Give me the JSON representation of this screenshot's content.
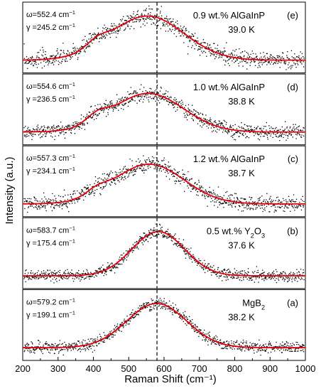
{
  "chart_data": {
    "type": "scatter",
    "xlabel": "Raman Shift (cm⁻¹)",
    "ylabel": "Intensity (a.u.)",
    "xlim": [
      200,
      1000
    ],
    "xticks": [
      "200",
      "300",
      "400",
      "500",
      "600",
      "700",
      "800",
      "900",
      "1000"
    ],
    "reference_line_x": 580,
    "colors": {
      "points": "#000000",
      "fit": "#e8000b",
      "dashed": "#000000"
    },
    "panels": [
      {
        "id": "e",
        "letter": "(e)",
        "sample_text": "0.9 wt.% AlGaInP",
        "temperature": "39.0 K",
        "omega_value": "552.4",
        "gamma_value": "245.2",
        "center": 552.4,
        "width": 245.2,
        "peak_height": 0.8,
        "shoulder": 0.12,
        "noise": 0.075
      },
      {
        "id": "d",
        "letter": "(d)",
        "sample_text": "1.0 wt.% AlGaInP",
        "temperature": "38.8 K",
        "omega_value": "554.6",
        "gamma_value": "236.5",
        "center": 554.6,
        "width": 236.5,
        "peak_height": 0.7,
        "shoulder": 0.14,
        "noise": 0.065
      },
      {
        "id": "c",
        "letter": "(c)",
        "sample_text": "1.2 wt.% AlGaInP",
        "temperature": "38.7 K",
        "omega_value": "557.3",
        "gamma_value": "234.1",
        "center": 557.3,
        "width": 234.1,
        "peak_height": 0.72,
        "shoulder": 0.1,
        "noise": 0.07
      },
      {
        "id": "b",
        "letter": "(b)",
        "sample_base": "0.5 wt.% Y",
        "sample_sub1": "2",
        "sample_mid": "O",
        "sample_sub2": "3",
        "temperature": "37.6 K",
        "omega_value": "583.7",
        "gamma_value": "175.4",
        "center": 583.7,
        "width": 175.4,
        "peak_height": 0.8,
        "shoulder": 0.0,
        "noise": 0.05
      },
      {
        "id": "a",
        "letter": "(a)",
        "sample_base": "MgB",
        "sample_sub1": "2",
        "temperature": "38.2 K",
        "omega_value": "579.2",
        "gamma_value": "199.1",
        "center": 579.2,
        "width": 199.1,
        "peak_height": 0.8,
        "shoulder": 0.0,
        "noise": 0.05
      }
    ],
    "omega_prefix": "ω=",
    "gamma_prefix": "γ =",
    "unit_text": " cm",
    "unit_sup": "−1"
  }
}
